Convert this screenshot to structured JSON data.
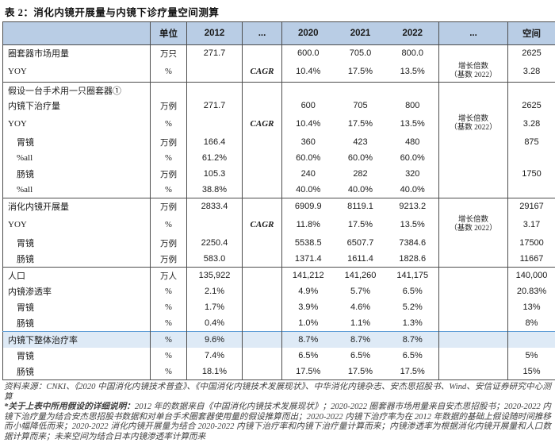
{
  "title": "表 2：消化内镜开展量与内镜下诊疗量空间测算",
  "colors": {
    "header_bg": "#b9cde5",
    "highlight_bg": "#deeaf6",
    "border_dark": "#4d4d4d",
    "border_blue": "#5b9bd5",
    "footer_text": "#3f3f3f"
  },
  "table": {
    "columns": [
      "",
      "单位",
      "2012",
      "...",
      "2020",
      "2021",
      "2022",
      "...",
      "空间"
    ],
    "growth_note": "增长倍数\n（基数 2022）",
    "cagr_label": "CAGR",
    "rows": [
      {
        "label": "圈套器市场用量",
        "indent": false,
        "border_top": "",
        "highlight": false,
        "cells": [
          "万只",
          "271.7",
          "",
          "600.0",
          "705.0",
          "800.0",
          "",
          "2625"
        ]
      },
      {
        "label": "YOY",
        "indent": false,
        "border_top": "",
        "highlight": false,
        "cells": [
          "%",
          "",
          "CAGR",
          "10.4%",
          "17.5%",
          "13.5%",
          "增长倍数\n（基数 2022）",
          "3.28"
        ]
      },
      {
        "label": "假设一台手术用一只圈套器①",
        "indent": false,
        "border_top": "dark",
        "highlight": false,
        "cells": [
          "",
          "",
          "",
          "",
          "",
          "",
          "",
          ""
        ]
      },
      {
        "label": "内镜下治疗量",
        "indent": false,
        "border_top": "",
        "highlight": false,
        "cells": [
          "万例",
          "271.7",
          "",
          "600",
          "705",
          "800",
          "",
          "2625"
        ]
      },
      {
        "label": "YOY",
        "indent": false,
        "border_top": "",
        "highlight": false,
        "cells": [
          "%",
          "",
          "CAGR",
          "10.4%",
          "17.5%",
          "13.5%",
          "增长倍数\n（基数 2022）",
          "3.28"
        ]
      },
      {
        "label": "胃镜",
        "indent": true,
        "border_top": "",
        "highlight": false,
        "cells": [
          "万例",
          "166.4",
          "",
          "360",
          "423",
          "480",
          "",
          "875"
        ]
      },
      {
        "label": "%all",
        "indent": true,
        "border_top": "",
        "highlight": false,
        "cells": [
          "%",
          "61.2%",
          "",
          "60.0%",
          "60.0%",
          "60.0%",
          "",
          ""
        ]
      },
      {
        "label": "肠镜",
        "indent": true,
        "border_top": "",
        "highlight": false,
        "cells": [
          "万例",
          "105.3",
          "",
          "240",
          "282",
          "320",
          "",
          "1750"
        ]
      },
      {
        "label": "%all",
        "indent": true,
        "border_top": "",
        "highlight": false,
        "cells": [
          "%",
          "38.8%",
          "",
          "40.0%",
          "40.0%",
          "40.0%",
          "",
          ""
        ]
      },
      {
        "label": "消化内镜开展量",
        "indent": false,
        "border_top": "dark",
        "highlight": false,
        "cells": [
          "万例",
          "2833.4",
          "",
          "6909.9",
          "8119.1",
          "9213.2",
          "",
          "29167"
        ]
      },
      {
        "label": "YOY",
        "indent": false,
        "border_top": "",
        "highlight": false,
        "cells": [
          "%",
          "",
          "CAGR",
          "11.8%",
          "17.5%",
          "13.5%",
          "增长倍数\n（基数 2022）",
          "3.17"
        ]
      },
      {
        "label": "胃镜",
        "indent": true,
        "border_top": "",
        "highlight": false,
        "cells": [
          "万例",
          "2250.4",
          "",
          "5538.5",
          "6507.7",
          "7384.6",
          "",
          "17500"
        ]
      },
      {
        "label": "肠镜",
        "indent": true,
        "border_top": "",
        "highlight": false,
        "cells": [
          "万例",
          "583.0",
          "",
          "1371.4",
          "1611.4",
          "1828.6",
          "",
          "11667"
        ]
      },
      {
        "label": "人口",
        "indent": false,
        "border_top": "dark",
        "highlight": false,
        "cells": [
          "万人",
          "135,922",
          "",
          "141,212",
          "141,260",
          "141,175",
          "",
          "140,000"
        ]
      },
      {
        "label": "内镜渗透率",
        "indent": false,
        "border_top": "",
        "highlight": false,
        "cells": [
          "%",
          "2.1%",
          "",
          "4.9%",
          "5.7%",
          "6.5%",
          "",
          "20.83%"
        ]
      },
      {
        "label": "胃镜",
        "indent": true,
        "border_top": "",
        "highlight": false,
        "cells": [
          "%",
          "1.7%",
          "",
          "3.9%",
          "4.6%",
          "5.2%",
          "",
          "13%"
        ]
      },
      {
        "label": "肠镜",
        "indent": true,
        "border_top": "",
        "highlight": false,
        "cells": [
          "%",
          "0.4%",
          "",
          "1.0%",
          "1.1%",
          "1.3%",
          "",
          "8%"
        ]
      },
      {
        "label": "内镜下整体治疗率",
        "indent": false,
        "border_top": "blue",
        "highlight": true,
        "cells": [
          "%",
          "9.6%",
          "",
          "8.7%",
          "8.7%",
          "8.7%",
          "",
          ""
        ]
      },
      {
        "label": "胃镜",
        "indent": true,
        "border_top": "",
        "highlight": false,
        "cells": [
          "%",
          "7.4%",
          "",
          "6.5%",
          "6.5%",
          "6.5%",
          "",
          "5%"
        ]
      },
      {
        "label": "肠镜",
        "indent": true,
        "border_top": "",
        "highlight": false,
        "cells": [
          "%",
          "18.1%",
          "",
          "17.5%",
          "17.5%",
          "17.5%",
          "",
          "15%"
        ]
      }
    ]
  },
  "footer": {
    "source": "资料来源：CNKI、《2020 中国消化内镜技术普查》、《中国消化内镜技术发展现状》、中华消化内镜杂志、安杰思招股书、Wind、安信证券研究中心测算",
    "note_label": "*关于上表中所用假设的详细说明：",
    "note_text": "2012 年的数据来自《中国消化内镜技术发展现状》；2020-2022 圈套器市场用量来自安杰思招股书；2020-2022 内镜下治疗量为结合安杰思招股书数据和对单台手术圈套器使用量的假设推算而出；2020-2022 内镜下治疗率为在 2012 年数据的基础上假设随时间推移而小幅降低而来；2020-2022 消化内镜开展量为结合 2020-2022 内镜下治疗率和内镜下治疗量计算而来；内镜渗透率为根据消化内镜开展量和人口数据计算而来；未来空间为结合日本内镜渗透率计算而来"
  }
}
